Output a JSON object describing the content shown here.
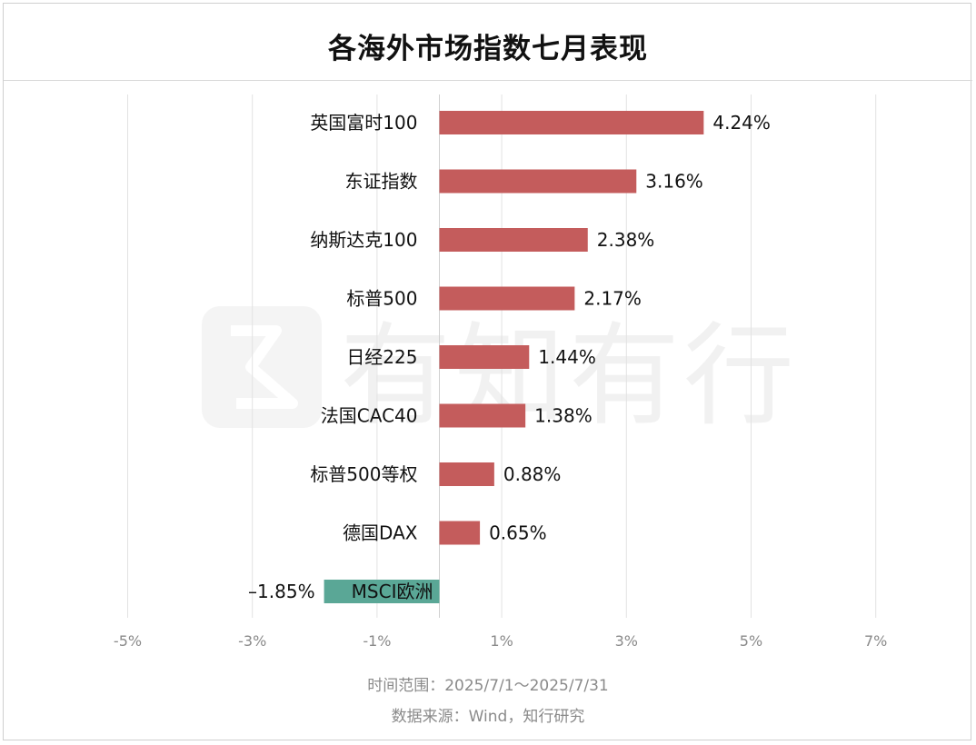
{
  "title": "各海外市场指数七月表现",
  "watermark": "有知有行",
  "footer": {
    "time_range": "时间范围：2025/7/1～2025/7/31",
    "source": "数据来源：Wind，知行研究"
  },
  "colors": {
    "positive": "#c45c5c",
    "negative": "#5aa796"
  },
  "chart_data": {
    "type": "bar",
    "orientation": "horizontal",
    "categories": [
      "英国富时100",
      "东证指数",
      "纳斯达克100",
      "标普500",
      "日经225",
      "法国CAC40",
      "标普500等权",
      "德国DAX",
      "MSCI欧洲"
    ],
    "values": [
      4.24,
      3.16,
      2.38,
      2.17,
      1.44,
      1.38,
      0.88,
      0.65,
      -1.85
    ],
    "value_labels": [
      "4.24%",
      "3.16%",
      "2.38%",
      "2.17%",
      "1.44%",
      "1.38%",
      "0.88%",
      "0.65%",
      "–1.85%"
    ],
    "xlim": [
      -5,
      7
    ],
    "xticks": [
      -5,
      -3,
      -1,
      1,
      3,
      5,
      7
    ],
    "xtick_labels": [
      "-5%",
      "-3%",
      "-1%",
      "1%",
      "3%",
      "5%",
      "7%"
    ],
    "grid": true,
    "xlabel": "",
    "ylabel": ""
  }
}
